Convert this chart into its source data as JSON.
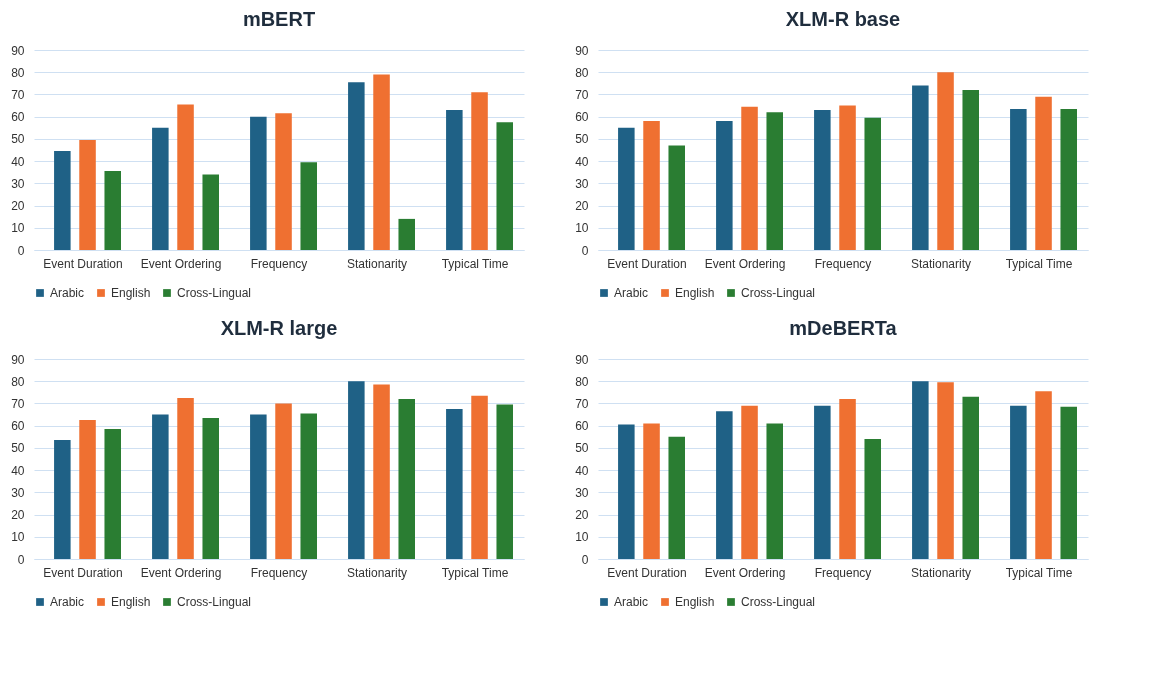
{
  "chart_data": [
    {
      "type": "bar",
      "title": "mBERT",
      "categories": [
        "Event Duration",
        "Event Ordering",
        "Frequency",
        "Stationarity",
        "Typical Time"
      ],
      "ylim": [
        0,
        90
      ],
      "yticks": [
        0,
        10,
        20,
        30,
        40,
        50,
        60,
        70,
        80,
        90
      ],
      "grid": "y",
      "legend": "bottom",
      "series": [
        {
          "name": "Arabic",
          "color": "#1f6186",
          "values": [
            44.5,
            55,
            60,
            75.5,
            63
          ]
        },
        {
          "name": "English",
          "color": "#ef7031",
          "values": [
            49.5,
            65.5,
            61.5,
            79,
            71
          ]
        },
        {
          "name": "Cross-Lingual",
          "color": "#2a7d32",
          "values": [
            35.5,
            34,
            39.5,
            14,
            57.5
          ]
        }
      ]
    },
    {
      "type": "bar",
      "title": "XLM-R base",
      "categories": [
        "Event Duration",
        "Event Ordering",
        "Frequency",
        "Stationarity",
        "Typical Time"
      ],
      "ylim": [
        0,
        90
      ],
      "yticks": [
        0,
        10,
        20,
        30,
        40,
        50,
        60,
        70,
        80,
        90
      ],
      "grid": "y",
      "legend": "bottom",
      "series": [
        {
          "name": "Arabic",
          "color": "#1f6186",
          "values": [
            55,
            58,
            63,
            74,
            63.5
          ]
        },
        {
          "name": "English",
          "color": "#ef7031",
          "values": [
            58,
            64.5,
            65,
            80,
            69
          ]
        },
        {
          "name": "Cross-Lingual",
          "color": "#2a7d32",
          "values": [
            47,
            62,
            59.5,
            72,
            63.5
          ]
        }
      ]
    },
    {
      "type": "bar",
      "title": "XLM-R large",
      "categories": [
        "Event Duration",
        "Event Ordering",
        "Frequency",
        "Stationarity",
        "Typical Time"
      ],
      "ylim": [
        0,
        90
      ],
      "yticks": [
        0,
        10,
        20,
        30,
        40,
        50,
        60,
        70,
        80,
        90
      ],
      "grid": "y",
      "legend": "bottom",
      "series": [
        {
          "name": "Arabic",
          "color": "#1f6186",
          "values": [
            53.5,
            65,
            65,
            80,
            67.5
          ]
        },
        {
          "name": "English",
          "color": "#ef7031",
          "values": [
            62.5,
            72.5,
            70,
            78.5,
            73.5
          ]
        },
        {
          "name": "Cross-Lingual",
          "color": "#2a7d32",
          "values": [
            58.5,
            63.5,
            65.5,
            72,
            69.5
          ]
        }
      ]
    },
    {
      "type": "bar",
      "title": "mDeBERTa",
      "categories": [
        "Event Duration",
        "Event Ordering",
        "Frequency",
        "Stationarity",
        "Typical Time"
      ],
      "ylim": [
        0,
        90
      ],
      "yticks": [
        0,
        10,
        20,
        30,
        40,
        50,
        60,
        70,
        80,
        90
      ],
      "grid": "y",
      "legend": "bottom",
      "series": [
        {
          "name": "Arabic",
          "color": "#1f6186",
          "values": [
            60.5,
            66.5,
            69,
            80,
            69
          ]
        },
        {
          "name": "English",
          "color": "#ef7031",
          "values": [
            61,
            69,
            72,
            79.5,
            75.5
          ]
        },
        {
          "name": "Cross-Lingual",
          "color": "#2a7d32",
          "values": [
            55,
            61,
            54,
            73,
            68.5
          ]
        }
      ]
    }
  ]
}
